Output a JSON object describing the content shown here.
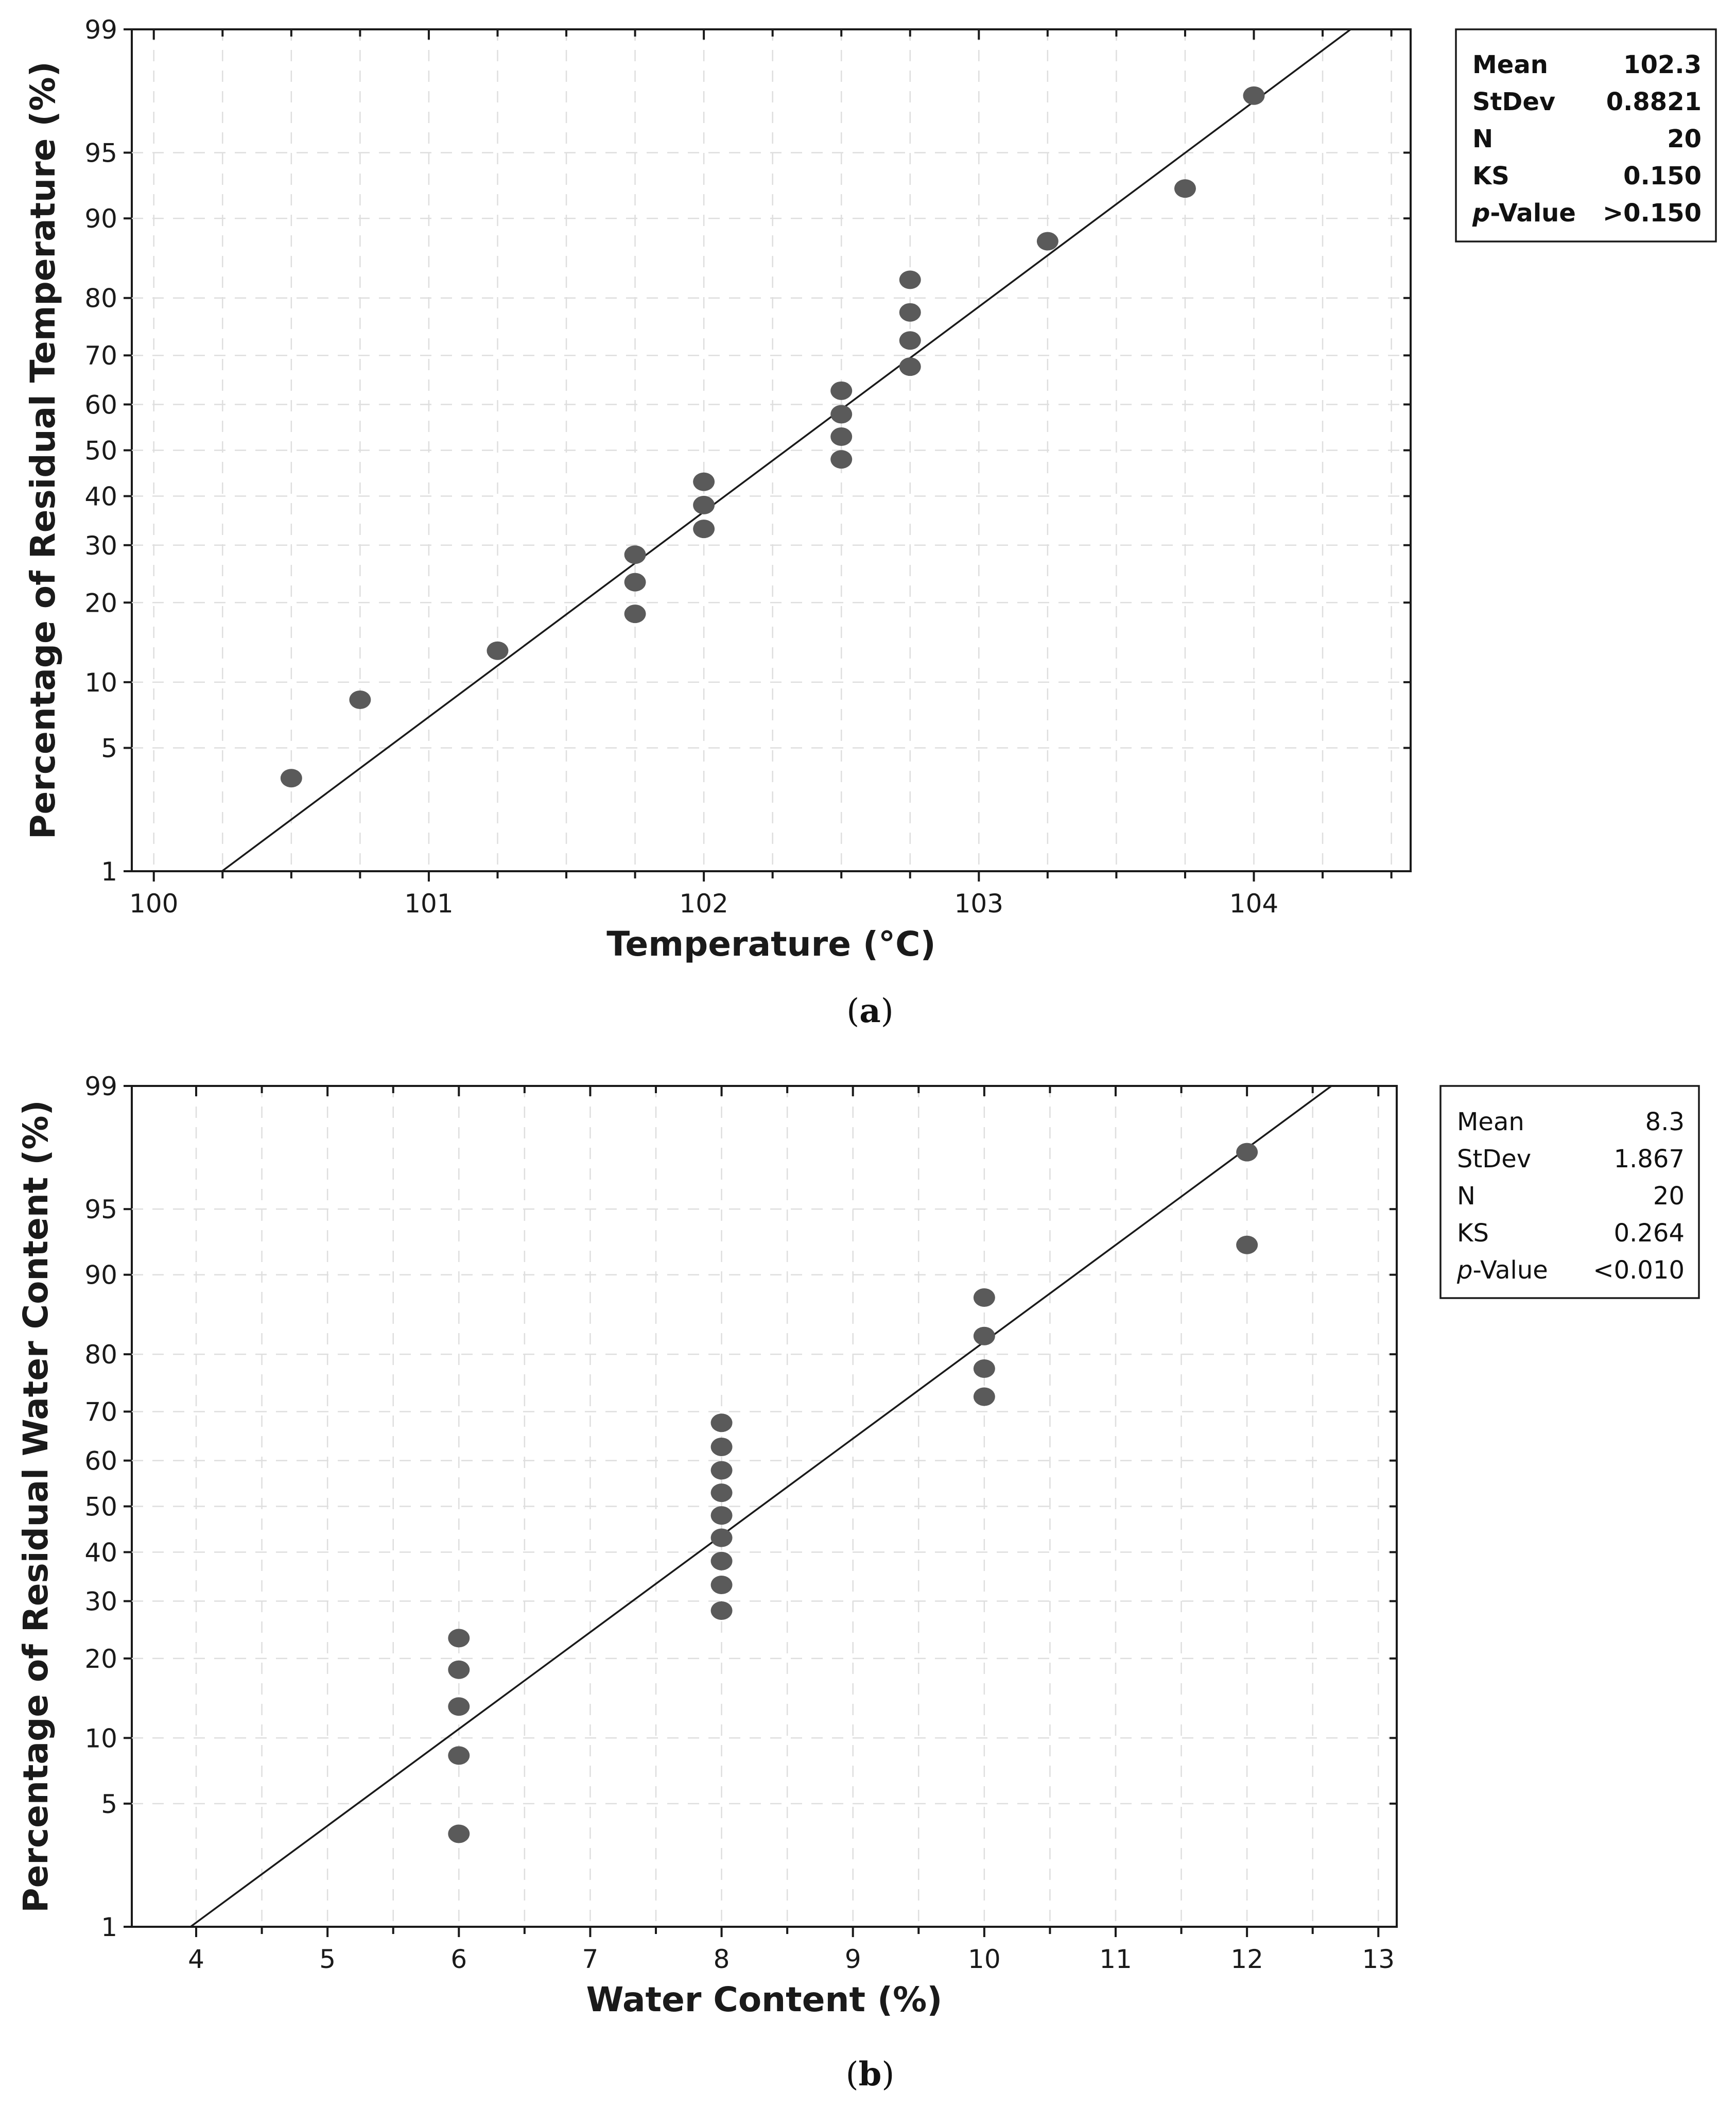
{
  "chart_data": [
    {
      "type": "scatter",
      "subtype": "probability-plot",
      "panel_label": "a",
      "xlabel": "Temperature (°C)",
      "ylabel": "Percentage of Residual Temperature (%)",
      "xlim": [
        99.92,
        104.57
      ],
      "xticks": [
        100,
        101,
        102,
        103,
        104
      ],
      "x_minor_step": 0.25,
      "ylim": [
        1,
        99
      ],
      "yticks": [
        1,
        5,
        10,
        20,
        30,
        40,
        50,
        60,
        70,
        80,
        90,
        95,
        99
      ],
      "fit_line": {
        "mean": 102.3,
        "stdev": 0.8821
      },
      "points": [
        {
          "x": 100.5,
          "y": 3.5
        },
        {
          "x": 100.75,
          "y": 8.4
        },
        {
          "x": 101.25,
          "y": 13.4
        },
        {
          "x": 101.75,
          "y": 18.3
        },
        {
          "x": 101.75,
          "y": 23.3
        },
        {
          "x": 101.75,
          "y": 28.2
        },
        {
          "x": 102.0,
          "y": 33.2
        },
        {
          "x": 102.0,
          "y": 38.1
        },
        {
          "x": 102.0,
          "y": 43.1
        },
        {
          "x": 102.5,
          "y": 48.0
        },
        {
          "x": 102.5,
          "y": 53.0
        },
        {
          "x": 102.5,
          "y": 57.9
        },
        {
          "x": 102.5,
          "y": 62.9
        },
        {
          "x": 102.75,
          "y": 67.8
        },
        {
          "x": 102.75,
          "y": 72.8
        },
        {
          "x": 102.75,
          "y": 77.7
        },
        {
          "x": 102.75,
          "y": 82.7
        },
        {
          "x": 103.25,
          "y": 87.6
        },
        {
          "x": 103.75,
          "y": 92.6
        },
        {
          "x": 104.0,
          "y": 97.5
        }
      ],
      "stats": {
        "bold": true,
        "rows": [
          {
            "label": "Mean",
            "value": "102.3"
          },
          {
            "label": "StDev",
            "value": "0.8821"
          },
          {
            "label": "N",
            "value": "20"
          },
          {
            "label": "KS",
            "value": "0.150"
          }
        ],
        "p_label_italic": "p",
        "p_label_rest": "-Value",
        "p_value": ">0.150"
      }
    },
    {
      "type": "scatter",
      "subtype": "probability-plot",
      "panel_label": "b",
      "xlabel": "Water Content (%)",
      "ylabel": "Percentage of Residual Water Content (%)",
      "xlim": [
        3.51,
        13.14
      ],
      "xticks": [
        4,
        5,
        6,
        7,
        8,
        9,
        10,
        11,
        12,
        13
      ],
      "x_minor_step": 0.5,
      "ylim": [
        1,
        99
      ],
      "yticks": [
        1,
        5,
        10,
        20,
        30,
        40,
        50,
        60,
        70,
        80,
        90,
        95,
        99
      ],
      "fit_line": {
        "mean": 8.3,
        "stdev": 1.867
      },
      "points": [
        {
          "x": 6,
          "y": 3.5
        },
        {
          "x": 6,
          "y": 8.4
        },
        {
          "x": 6,
          "y": 13.4
        },
        {
          "x": 6,
          "y": 18.3
        },
        {
          "x": 6,
          "y": 23.3
        },
        {
          "x": 8,
          "y": 28.2
        },
        {
          "x": 8,
          "y": 33.2
        },
        {
          "x": 8,
          "y": 38.1
        },
        {
          "x": 8,
          "y": 43.1
        },
        {
          "x": 8,
          "y": 48.0
        },
        {
          "x": 8,
          "y": 53.0
        },
        {
          "x": 8,
          "y": 57.9
        },
        {
          "x": 8,
          "y": 62.9
        },
        {
          "x": 8,
          "y": 67.8
        },
        {
          "x": 10,
          "y": 72.8
        },
        {
          "x": 10,
          "y": 77.7
        },
        {
          "x": 10,
          "y": 82.7
        },
        {
          "x": 10,
          "y": 87.6
        },
        {
          "x": 12,
          "y": 92.6
        },
        {
          "x": 12,
          "y": 97.5
        }
      ],
      "stats": {
        "bold": false,
        "rows": [
          {
            "label": "Mean",
            "value": "8.3"
          },
          {
            "label": "StDev",
            "value": "1.867"
          },
          {
            "label": "N",
            "value": "20"
          },
          {
            "label": "KS",
            "value": "0.264"
          }
        ],
        "p_label_italic": "p",
        "p_label_rest": "-Value",
        "p_value": "<0.010"
      }
    }
  ]
}
